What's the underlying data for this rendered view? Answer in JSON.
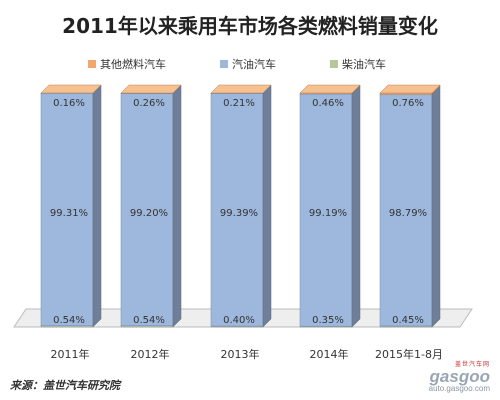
{
  "title": "2011年以来乘用车市场各类燃料销量变化",
  "source": "来源：盖世汽车研究院",
  "watermark": {
    "top": "盖世汽车网",
    "logo": "gasgoo",
    "url": "auto.gasgoo.com"
  },
  "colors": {
    "other": "#f2a66c",
    "gasoline": "#9db8dc",
    "diesel": "#b6c89a",
    "gasoline_side": "#6f7f9a",
    "other_side": "#b8835a",
    "diesel_side": "#8a9a6a"
  },
  "chart_data": {
    "type": "bar",
    "stacked": true,
    "categories": [
      "2011年",
      "2012年",
      "2013年",
      "2014年",
      "2015年1-8月"
    ],
    "series": [
      {
        "name": "其他燃料汽车",
        "values": [
          0.16,
          0.26,
          0.21,
          0.46,
          0.76
        ],
        "labels": [
          "0.16%",
          "0.26%",
          "0.21%",
          "0.46%",
          "0.76%"
        ]
      },
      {
        "name": "汽油汽车",
        "values": [
          99.31,
          99.2,
          99.39,
          99.19,
          98.79
        ],
        "labels": [
          "99.31%",
          "99.20%",
          "99.39%",
          "99.19%",
          "98.79%"
        ]
      },
      {
        "name": "柴油汽车",
        "values": [
          0.54,
          0.54,
          0.4,
          0.35,
          0.45
        ],
        "labels": [
          "0.54%",
          "0.54%",
          "0.40%",
          "0.35%",
          "0.45%"
        ]
      }
    ],
    "ylim": [
      0,
      100
    ],
    "legend": "top"
  }
}
